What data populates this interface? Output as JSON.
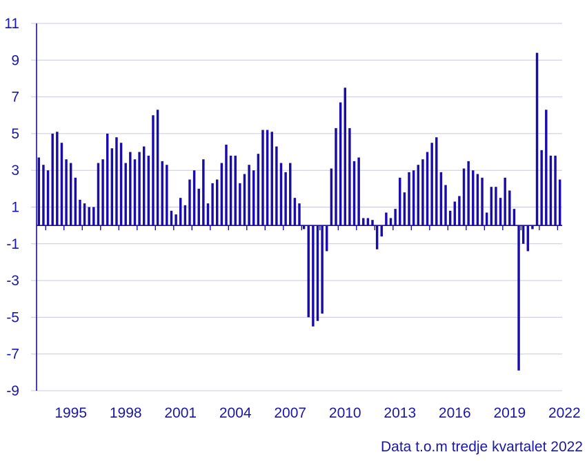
{
  "chart_data": {
    "type": "bar",
    "title": "",
    "xlabel": "",
    "ylabel": "",
    "ylim": [
      -9,
      11
    ],
    "yticks": [
      11,
      9,
      7,
      5,
      3,
      1,
      -1,
      -3,
      -5,
      -7,
      -9
    ],
    "xticks": [
      "1995",
      "1998",
      "2001",
      "2004",
      "2007",
      "2010",
      "2013",
      "2016",
      "2019",
      "2022"
    ],
    "start": "1993 Q3",
    "bar_color": "#1a0ca8",
    "grid_color": "#c8c6e8",
    "text_color": "#1a17a6",
    "values": [
      3.7,
      3.3,
      3.0,
      5.0,
      5.1,
      4.5,
      3.6,
      3.4,
      2.6,
      1.4,
      1.2,
      1.0,
      1.0,
      3.4,
      3.6,
      5.0,
      4.2,
      4.8,
      4.5,
      3.4,
      4.0,
      3.6,
      4.0,
      4.3,
      3.8,
      6.0,
      6.3,
      3.5,
      3.3,
      0.8,
      0.6,
      1.5,
      1.1,
      2.5,
      3.0,
      2.0,
      3.6,
      1.2,
      2.3,
      2.5,
      3.4,
      4.4,
      3.8,
      3.8,
      2.3,
      2.8,
      3.3,
      3.0,
      3.9,
      5.2,
      5.2,
      5.1,
      4.3,
      3.4,
      2.9,
      3.4,
      1.5,
      1.2,
      -0.2,
      -5.0,
      -5.5,
      -5.2,
      -4.8,
      -1.4,
      3.1,
      5.3,
      6.7,
      7.5,
      5.3,
      3.5,
      3.7,
      0.4,
      0.4,
      0.3,
      -1.3,
      -0.6,
      0.7,
      0.4,
      0.9,
      2.6,
      1.8,
      2.9,
      3.0,
      3.3,
      3.6,
      4.0,
      4.5,
      4.8,
      2.9,
      2.2,
      0.8,
      1.3,
      1.6,
      3.1,
      3.5,
      3.0,
      2.8,
      2.6,
      0.7,
      2.1,
      2.1,
      1.5,
      2.6,
      1.9,
      0.9,
      -7.9,
      -1.0,
      -1.4,
      -0.2,
      9.4,
      4.1,
      6.3,
      3.8,
      3.8,
      2.5
    ]
  },
  "footer_note": "Data t.o.m tredje kvartalet 2022"
}
